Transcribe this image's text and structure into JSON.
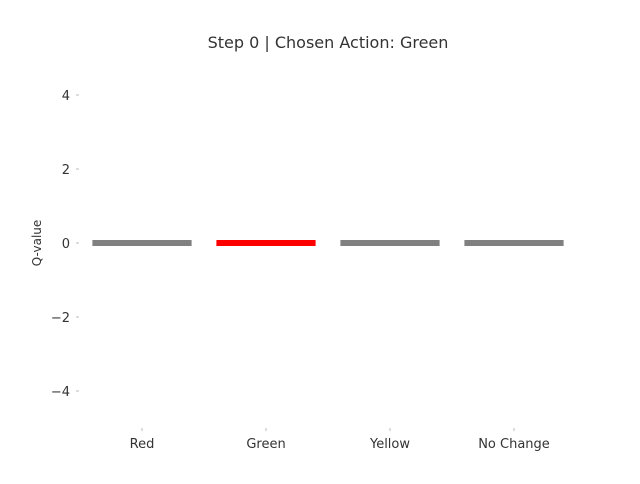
{
  "chart_data": {
    "type": "bar",
    "title": "Step 0 | Chosen Action: Green",
    "xlabel": "",
    "ylabel": "Q-value",
    "categories": [
      "Red",
      "Green",
      "Yellow",
      "No Change"
    ],
    "values": [
      0,
      0,
      0,
      0
    ],
    "bar_colors": [
      "#808080",
      "#ff0000",
      "#808080",
      "#808080"
    ],
    "highlighted_category": "Green",
    "ylim": [
      -5,
      5
    ],
    "yticks": [
      -4,
      -2,
      0,
      2,
      4
    ],
    "ytick_labels": [
      "−4",
      "−2",
      "0",
      "2",
      "4"
    ],
    "grid": false,
    "legend": "none"
  }
}
